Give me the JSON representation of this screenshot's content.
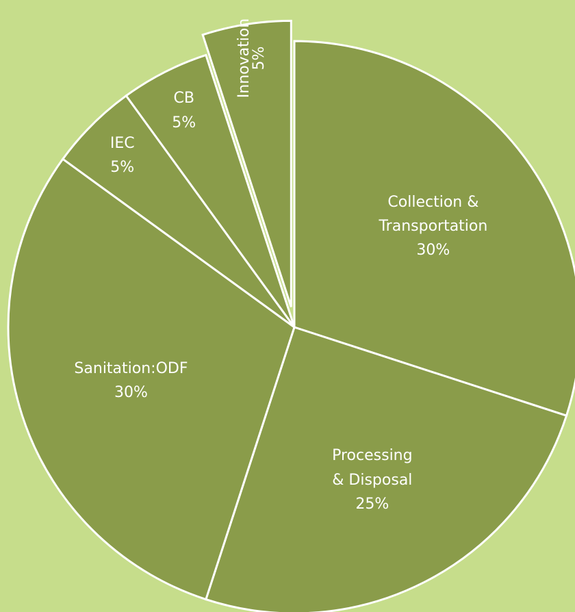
{
  "chart_data": {
    "type": "pie",
    "categories": [
      "Collection &\nTransportation",
      "Processing\n& Disposal",
      "Sanitation:ODF",
      "IEC",
      "CB",
      "Innovation"
    ],
    "values": [
      30,
      25,
      30,
      5,
      5,
      5
    ],
    "value_labels": [
      "30%",
      "25%",
      "30%",
      "5%",
      "5%",
      "5%"
    ],
    "color": "#8a9c4a",
    "exploded_slice": "Innovation"
  }
}
